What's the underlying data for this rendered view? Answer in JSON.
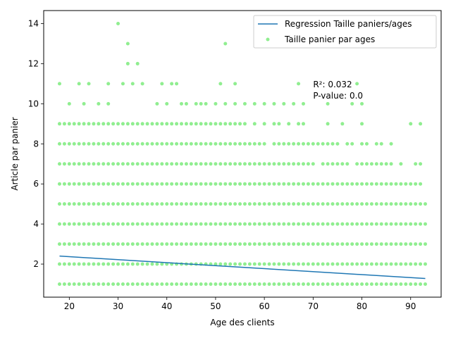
{
  "chart_data": {
    "type": "scatter",
    "xlabel": "Age des clients",
    "ylabel": "Article par panier",
    "xlim": [
      14.75,
      96.25
    ],
    "ylim": [
      0.35,
      14.65
    ],
    "xticks": [
      20,
      30,
      40,
      50,
      60,
      70,
      80,
      90
    ],
    "yticks": [
      2,
      4,
      6,
      8,
      10,
      12,
      14
    ],
    "grid": false,
    "legend": {
      "placement": "top-right",
      "entries": [
        "Regression Taille paniers/ages",
        "Taille panier par ages"
      ]
    },
    "annotation": {
      "r2": "R²: 0.032",
      "pvalue": "P-value: 0.0",
      "x": 70,
      "y": 10.4
    },
    "series": [
      {
        "name": "Regression Taille paniers/ages",
        "kind": "line",
        "color": "#1f77b4",
        "x": [
          18,
          93
        ],
        "y": [
          2.4,
          1.28
        ]
      },
      {
        "name": "Taille panier par ages",
        "kind": "scatter",
        "color": "#90ee90",
        "full_rows": {
          "1": [
            18,
            93
          ],
          "2": [
            18,
            93
          ],
          "3": [
            18,
            93
          ],
          "4": [
            18,
            93
          ],
          "5": [
            18,
            93
          ],
          "6": [
            18,
            92
          ]
        },
        "rows": {
          "7": [
            18,
            19,
            20,
            21,
            22,
            23,
            24,
            25,
            26,
            27,
            28,
            29,
            30,
            31,
            32,
            33,
            34,
            35,
            36,
            37,
            38,
            39,
            40,
            41,
            42,
            43,
            44,
            45,
            46,
            47,
            48,
            49,
            50,
            51,
            52,
            53,
            54,
            55,
            56,
            57,
            58,
            59,
            60,
            61,
            62,
            63,
            64,
            65,
            66,
            67,
            68,
            69,
            70,
            72,
            73,
            74,
            75,
            76,
            77,
            79,
            80,
            81,
            82,
            83,
            84,
            85,
            86,
            88,
            91,
            92
          ],
          "8": [
            18,
            19,
            20,
            21,
            22,
            23,
            24,
            25,
            26,
            27,
            28,
            29,
            30,
            31,
            32,
            33,
            34,
            35,
            36,
            37,
            38,
            39,
            40,
            41,
            42,
            43,
            44,
            45,
            46,
            47,
            48,
            49,
            50,
            51,
            52,
            53,
            54,
            55,
            56,
            57,
            58,
            59,
            60,
            62,
            63,
            64,
            65,
            66,
            67,
            68,
            69,
            70,
            71,
            72,
            73,
            74,
            75,
            77,
            78,
            80,
            81,
            83,
            84,
            86
          ],
          "9": [
            18,
            19,
            20,
            21,
            22,
            23,
            24,
            25,
            26,
            27,
            28,
            29,
            30,
            31,
            32,
            33,
            34,
            35,
            36,
            37,
            38,
            39,
            40,
            41,
            42,
            43,
            44,
            45,
            46,
            47,
            48,
            49,
            50,
            51,
            52,
            53,
            54,
            55,
            56,
            58,
            60,
            62,
            63,
            65,
            67,
            68,
            73,
            76,
            80,
            90,
            92
          ],
          "10": [
            20,
            23,
            26,
            28,
            38,
            40,
            43,
            44,
            46,
            47,
            48,
            50,
            52,
            54,
            56,
            58,
            60,
            62,
            64,
            66,
            68,
            73,
            78,
            80
          ],
          "11": [
            18,
            22,
            24,
            28,
            31,
            33,
            35,
            39,
            41,
            42,
            51,
            54,
            67,
            79
          ],
          "12": [
            32,
            34
          ],
          "13": [
            32,
            52
          ],
          "14": [
            30
          ]
        }
      }
    ]
  }
}
